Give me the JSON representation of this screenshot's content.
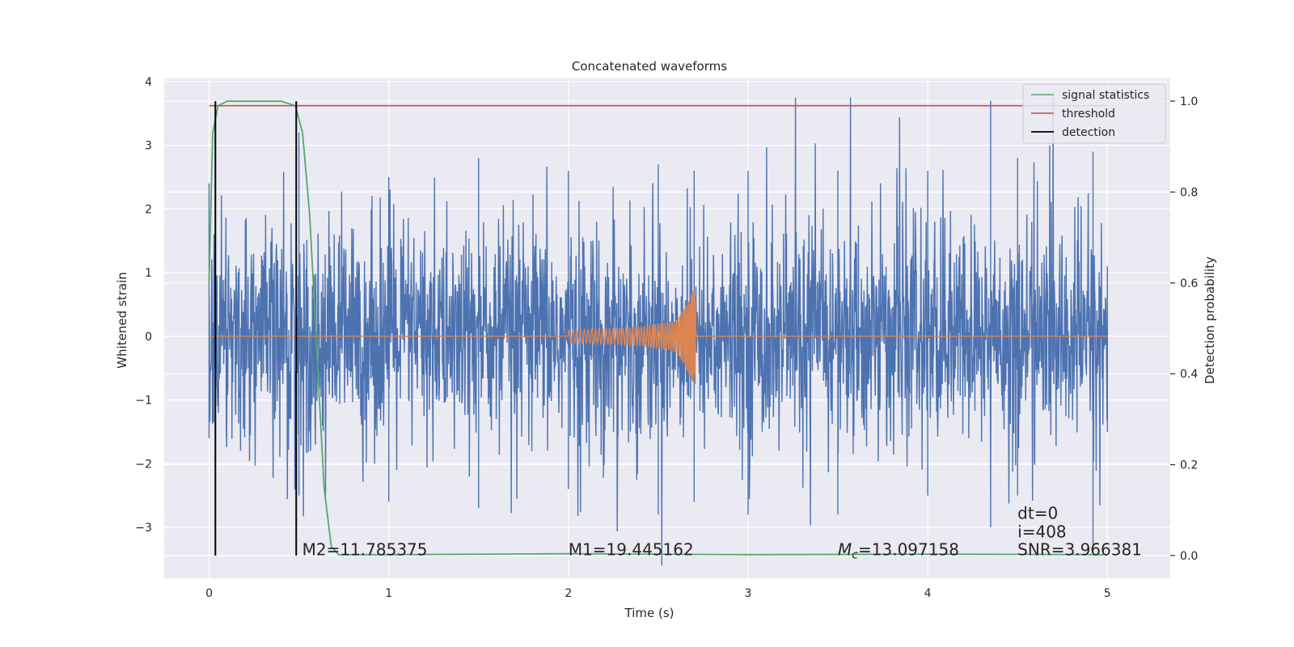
{
  "chart_data": {
    "type": "line",
    "title": "Concatenated waveforms",
    "xlabel": "Time (s)",
    "ylabel": "Whitened strain",
    "y2label": "Detection probability",
    "xlim": [
      -0.25,
      5.35
    ],
    "ylim": [
      -3.8,
      4.05
    ],
    "y2lim": [
      -0.05,
      1.05
    ],
    "x_ticks": [
      0,
      1,
      2,
      3,
      4,
      5
    ],
    "x_tick_labels": [
      "0",
      "1",
      "2",
      "3",
      "4",
      "5"
    ],
    "y_ticks": [
      -3,
      -2,
      -1,
      0,
      1,
      2,
      3,
      4
    ],
    "y_tick_labels": [
      "−3",
      "−2",
      "−1",
      "0",
      "1",
      "2",
      "3",
      "4"
    ],
    "y2_ticks": [
      0.0,
      0.2,
      0.4,
      0.6,
      0.8,
      1.0
    ],
    "y2_tick_labels": [
      "0.0",
      "0.2",
      "0.4",
      "0.6",
      "0.8",
      "1.0"
    ],
    "grid": true,
    "legend_position": "top-right",
    "series": [
      {
        "axis": "left",
        "color": "#4c72b0",
        "description_values": "whitened strain noise, approx. within ±2.5 with spikes up to ±3.7, t = 0 to 5 s",
        "sample_x": [
          0,
          0.5,
          1,
          1.5,
          2,
          2.5,
          2.7,
          3,
          3.5,
          4,
          4.35,
          4.5,
          4.92,
          5
        ],
        "sample_y_max": [
          2.4,
          3.2,
          2.5,
          2.8,
          2.6,
          2.7,
          2.6,
          2.6,
          2.6,
          2.6,
          3.7,
          2.8,
          2.9,
          1.1
        ],
        "sample_y_min": [
          -1.6,
          -2.5,
          -2.6,
          -2.7,
          -2.4,
          -2.8,
          -2.6,
          -2.8,
          -2.8,
          -2.5,
          -3.0,
          -2.5,
          -3.4,
          -1.5
        ]
      },
      {
        "axis": "left",
        "color": "#dd8452",
        "description_values": "injected chirp signal, zero until t=2.0 s, amplitude growing to about 0.8 at merger t≈2.71 s, then zero",
        "sample_x": [
          0,
          2.0,
          2.2,
          2.4,
          2.6,
          2.71,
          2.72,
          5.0
        ],
        "sample_amplitude": [
          0,
          0.1,
          0.12,
          0.15,
          0.25,
          0.8,
          0.0,
          0.0
        ]
      },
      {
        "name": "signal statistics",
        "axis": "right",
        "color": "#55a868",
        "x": [
          0,
          0.02,
          0.05,
          0.1,
          0.2,
          0.3,
          0.4,
          0.48,
          0.52,
          0.56,
          0.6,
          0.64,
          0.68,
          0.72,
          1.0,
          2.0,
          3.0,
          4.0,
          5.0
        ],
        "values": [
          0.6,
          0.93,
          0.99,
          1.0,
          1.0,
          1.0,
          1.0,
          0.99,
          0.93,
          0.75,
          0.45,
          0.15,
          0.02,
          0.002,
          0.002,
          0.004,
          0.002,
          0.003,
          0.002
        ]
      },
      {
        "name": "threshold",
        "axis": "right",
        "color": "#c44e52",
        "x": [
          0,
          5
        ],
        "values": [
          0.99,
          0.99
        ]
      },
      {
        "name": "detection",
        "axis": "right",
        "color": "#000000",
        "vlines_x": [
          0.035,
          0.485
        ],
        "vline_range": [
          0.0,
          1.0
        ]
      }
    ],
    "annotations": [
      {
        "text": "M2=11.785375",
        "x": 0.5,
        "y": -3.35
      },
      {
        "text": "M1=19.445162",
        "x": 2.0,
        "y": -3.35
      },
      {
        "text_italic": "M",
        "text_sub": "c",
        "text": "=13.097158",
        "x": 3.5,
        "y": -3.35
      },
      {
        "text": "dt=0",
        "x": 4.5,
        "y": -2.78
      },
      {
        "text": "i=408",
        "x": 4.5,
        "y": -3.07
      },
      {
        "text": "SNR=3.966381",
        "x": 4.5,
        "y": -3.35
      }
    ]
  },
  "colors": {
    "axes_bg": "#eaeaf2",
    "grid": "#ffffff",
    "text": "#262626",
    "strain": "#4c72b0",
    "chirp": "#dd8452",
    "stat": "#55a868",
    "threshold": "#c44e52",
    "detection": "#000000"
  }
}
